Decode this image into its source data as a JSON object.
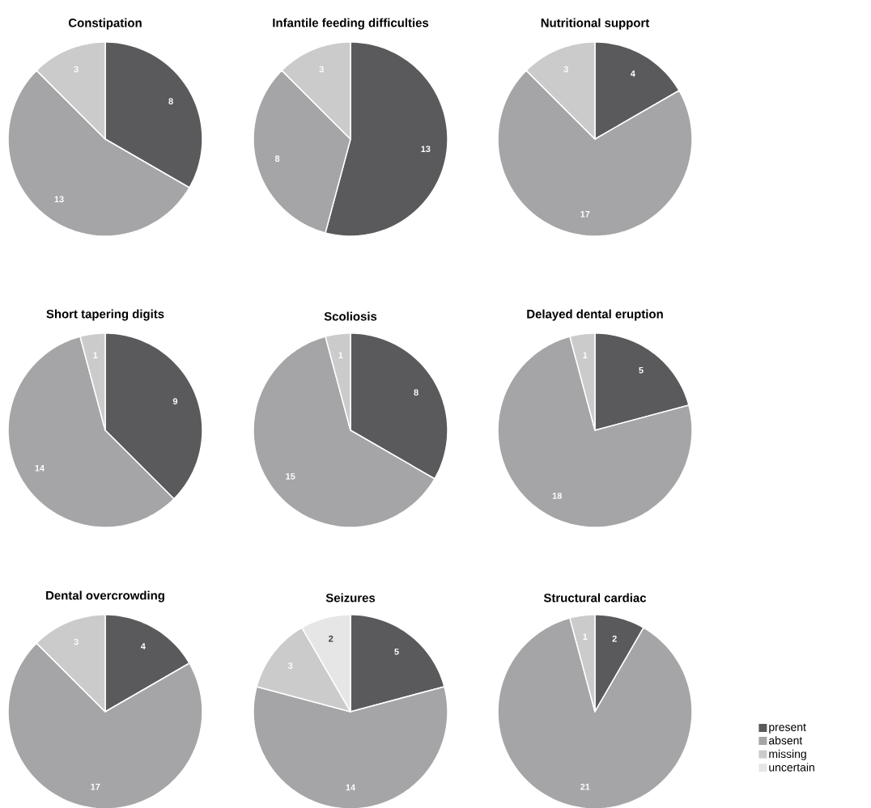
{
  "chart_data": [
    {
      "type": "pie",
      "title": "Constipation",
      "categories": [
        null,
        null,
        null,
        null
      ],
      "values": [
        8,
        13,
        3,
        null
      ],
      "colors": [
        "#5a5a5c",
        "#a5a5a7",
        "#cbcbcb",
        "#e6e6e6"
      ],
      "data_labels": true
    },
    {
      "type": "pie",
      "title": "Infantile feeding difficulties",
      "categories": [
        null,
        null,
        null,
        null
      ],
      "values": [
        13,
        8,
        3,
        null
      ],
      "colors": [
        "#5a5a5c",
        "#a5a5a7",
        "#cbcbcb",
        "#e6e6e6"
      ],
      "data_labels": true
    },
    {
      "type": "pie",
      "title": "Nutritional support",
      "categories": [
        null,
        null,
        null,
        null
      ],
      "values": [
        4,
        17,
        3,
        null
      ],
      "colors": [
        "#5a5a5c",
        "#a5a5a7",
        "#cbcbcb",
        "#e6e6e6"
      ],
      "data_labels": true
    },
    {
      "type": "pie",
      "title": "Short tapering digits",
      "categories": [
        null,
        null,
        null,
        null
      ],
      "values": [
        9,
        14,
        1,
        null
      ],
      "colors": [
        "#5a5a5c",
        "#a5a5a7",
        "#cbcbcb",
        "#e6e6e6"
      ],
      "data_labels": true
    },
    {
      "type": "pie",
      "title": "Scoliosis",
      "categories": [
        null,
        null,
        null,
        null
      ],
      "values": [
        8,
        15,
        1,
        null
      ],
      "colors": [
        "#5a5a5c",
        "#a5a5a7",
        "#cbcbcb",
        "#e6e6e6"
      ],
      "data_labels": true
    },
    {
      "type": "pie",
      "title": "Delayed dental eruption",
      "categories": [
        null,
        null,
        null,
        null
      ],
      "values": [
        5,
        18,
        1,
        null
      ],
      "colors": [
        "#5a5a5c",
        "#a5a5a7",
        "#cbcbcb",
        "#e6e6e6"
      ],
      "data_labels": true
    },
    {
      "type": "pie",
      "title": "Dental overcrowding",
      "categories": [
        null,
        null,
        null,
        null
      ],
      "values": [
        4,
        17,
        3,
        null
      ],
      "colors": [
        "#5a5a5c",
        "#a5a5a7",
        "#cbcbcb",
        "#e6e6e6"
      ],
      "data_labels": true
    },
    {
      "type": "pie",
      "title": "Seizures",
      "categories": [
        null,
        null,
        null,
        null
      ],
      "values": [
        5,
        14,
        3,
        2
      ],
      "colors": [
        "#5a5a5c",
        "#a5a5a7",
        "#cbcbcb",
        "#e6e6e6"
      ],
      "data_labels": true
    },
    {
      "type": "pie",
      "title": "Structural cardiac",
      "categories": [
        "present",
        "absent",
        "missing",
        "uncertain"
      ],
      "values": [
        2,
        21,
        1,
        null
      ],
      "colors": [
        "#5a5a5c",
        "#a5a5a7",
        "#cbcbcb",
        "#e6e6e6"
      ],
      "data_labels": true,
      "legend": "right"
    }
  ]
}
